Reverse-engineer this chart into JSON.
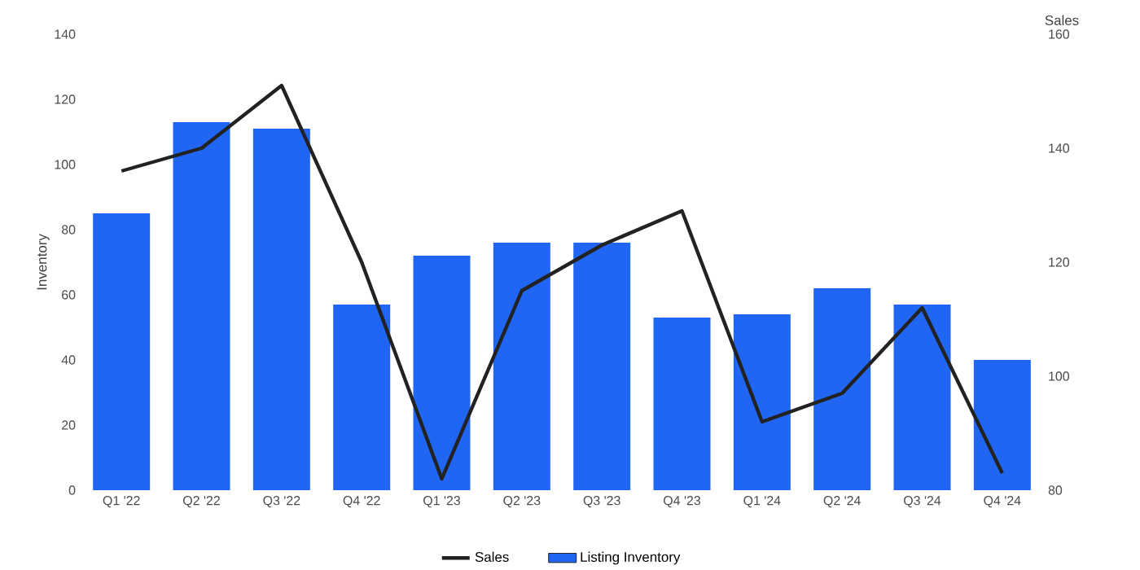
{
  "chart_data": {
    "type": "bar",
    "ylabel": "Inventory",
    "y2label": "Sales",
    "categories": [
      "Q1 '22",
      "Q2 '22",
      "Q3 '22",
      "Q4 '22",
      "Q1 '23",
      "Q2 '23",
      "Q3 '23",
      "Q4 '23",
      "Q1 '24",
      "Q2 '24",
      "Q3 '24",
      "Q4 '24"
    ],
    "series": [
      {
        "name": "Sales",
        "type": "line",
        "axis": "y2",
        "color": "#222222",
        "values": [
          136,
          140,
          151,
          120,
          82,
          115,
          123,
          129,
          92,
          97,
          112,
          83
        ]
      },
      {
        "name": "Listing Inventory",
        "color": "#2166f3",
        "values": [
          85,
          113,
          111,
          57,
          72,
          76,
          76,
          53,
          54,
          62,
          57,
          40
        ]
      }
    ],
    "ylim": [
      0,
      140
    ],
    "yticks": [
      0,
      20,
      40,
      60,
      80,
      100,
      120,
      140
    ],
    "y2lim": [
      80,
      160
    ],
    "y2ticks": [
      80,
      100,
      120,
      140,
      160
    ],
    "legend": "bottom",
    "grid": false,
    "marker": "none",
    "line_style": "solid"
  }
}
